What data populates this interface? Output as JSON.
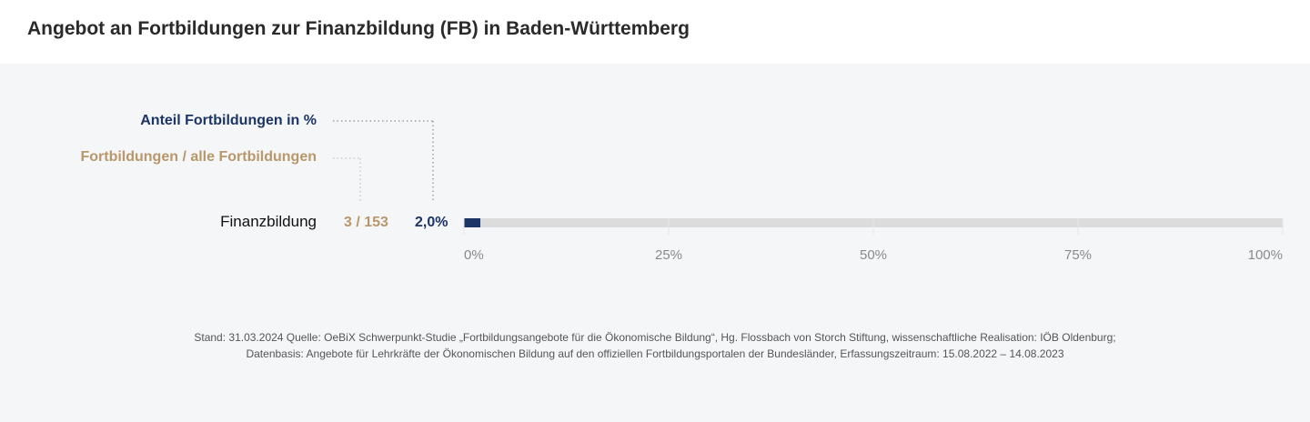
{
  "title": "Angebot an Fortbildungen zur Finanzbildung (FB) in Baden-Württemberg",
  "legend": {
    "share_label": "Anteil Fortbildungen  in %",
    "count_label": "Fortbildungen / alle Fortbildungen"
  },
  "colors": {
    "share": "#1c3566",
    "count": "#b8976a",
    "track": "#dcdcdc",
    "background": "#f5f6f8"
  },
  "chart_data": {
    "type": "bar",
    "orientation": "horizontal",
    "categories": [
      "Finanzbildung"
    ],
    "series": [
      {
        "values": [
          2.0
        ]
      }
    ],
    "count_labels": [
      "3 / 153"
    ],
    "value_labels": [
      "2,0%"
    ],
    "xlim": [
      0,
      100
    ],
    "xticks": [
      0,
      25,
      50,
      75,
      100
    ],
    "xtick_labels": [
      "0%",
      "25%",
      "50%",
      "75%",
      "100%"
    ],
    "grid": false
  },
  "footer": {
    "line1": "Stand: 31.03.2024 Quelle: OeBiX Schwerpunkt-Studie „Fortbildungsangebote für die Ökonomische Bildung“, Hg. Flossbach von Storch Stiftung, wissenschaftliche Realisation: IÖB Oldenburg;",
    "line2": "Datenbasis: Angebote für Lehrkräfte der Ökonomischen Bildung auf den offiziellen Fortbildungsportalen der Bundesländer, Erfassungszeitraum: 15.08.2022 – 14.08.2023"
  }
}
